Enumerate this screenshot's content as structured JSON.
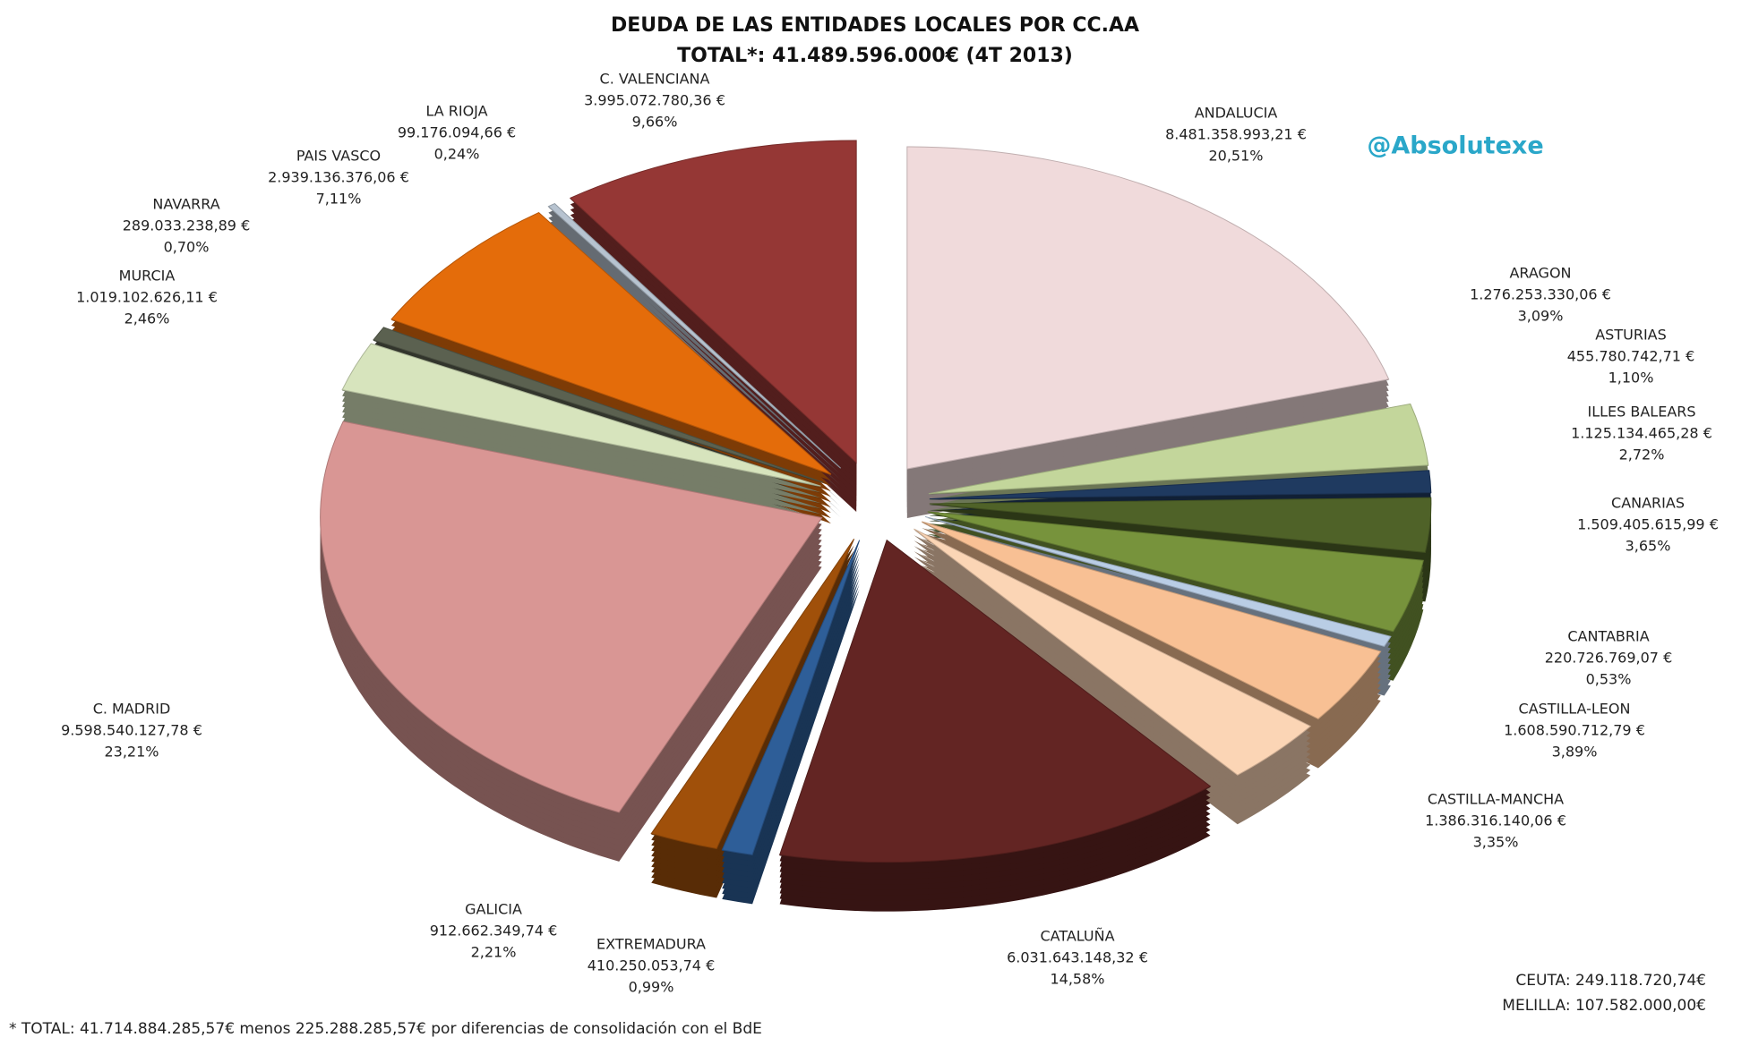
{
  "chart_data": {
    "type": "pie",
    "title": "DEUDA DE LAS ENTIDADES LOCALES POR CC.AA",
    "subtitle": "TOTAL*: 41.489.596.000€ (4T 2013)",
    "watermark": "@Absolutexe",
    "footnote": "* TOTAL: 41.714.884.285,57€ menos 225.288.285,57€ por diferencias de consolidación con el BdE",
    "notes": [
      "CEUTA: 249.118.720,74€",
      "MELILLA: 107.582.000,00€"
    ],
    "categories": [
      "ANDALUCIA",
      "ARAGON",
      "ASTURIAS",
      "ILLES BALEARS",
      "CANARIAS",
      "CANTABRIA",
      "CASTILLA-LEON",
      "CASTILLA-MANCHA",
      "CATALUÑA",
      "EXTREMADURA",
      "GALICIA",
      "C. MADRID",
      "MURCIA",
      "NAVARRA",
      "PAIS VASCO",
      "LA RIOJA",
      "C. VALENCIANA"
    ],
    "values": [
      8481358993.21,
      1276253330.06,
      455780742.71,
      1125134465.28,
      1509405615.99,
      220726769.07,
      1608590712.79,
      1386316140.06,
      6031643148.32,
      410250053.74,
      912662349.74,
      9598540127.78,
      1019102626.11,
      289033238.89,
      2939136376.06,
      99176094.66,
      3995072780.36
    ],
    "value_labels": [
      "8.481.358.993,21 €",
      "1.276.253.330,06 €",
      "455.780.742,71 €",
      "1.125.134.465,28 €",
      "1.509.405.615,99 €",
      "220.726.769,07 €",
      "1.608.590.712,79 €",
      "1.386.316.140,06 €",
      "6.031.643.148,32 €",
      "410.250.053,74 €",
      "912.662.349,74 €",
      "9.598.540.127,78 €",
      "1.019.102.626,11 €",
      "289.033.238,89 €",
      "2.939.136.376,06 €",
      "99.176.094,66 €",
      "3.995.072.780,36 €"
    ],
    "percentages": [
      20.51,
      3.09,
      1.1,
      2.72,
      3.65,
      0.53,
      3.89,
      3.35,
      14.58,
      0.99,
      2.21,
      23.21,
      2.46,
      0.7,
      7.11,
      0.24,
      9.66
    ],
    "percentage_labels": [
      "20,51%",
      "3,09%",
      "1,10%",
      "2,72%",
      "3,65%",
      "0,53%",
      "3,89%",
      "3,35%",
      "14,58%",
      "0,99%",
      "2,21%",
      "23,21%",
      "2,46%",
      "0,70%",
      "7,11%",
      "0,24%",
      "9,66%"
    ],
    "colors": [
      "#f0dadb",
      "#c3d69b",
      "#1f3a60",
      "#4f6228",
      "#77933c",
      "#b9cde5",
      "#f8c094",
      "#fbd5b5",
      "#632523",
      "#2e5e98",
      "#a0500a",
      "#d99694",
      "#d7e4bd",
      "#5b6150",
      "#e46c0a",
      "#b7c3d0",
      "#953735"
    ]
  }
}
